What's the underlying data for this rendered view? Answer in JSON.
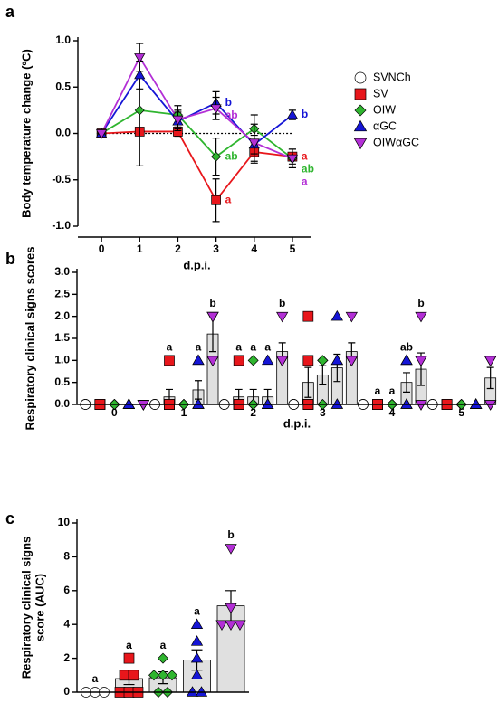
{
  "chart_data": [
    {
      "type": "line",
      "panel_label": "a",
      "y_label": "Body temperature change (ºC)",
      "x_label": "d.p.i.",
      "x": [
        0,
        1,
        2,
        3,
        4,
        5
      ],
      "xlim": [
        -0.5,
        5.5
      ],
      "xticks": [
        0,
        1,
        2,
        3,
        4,
        5
      ],
      "ylim": [
        -1,
        1
      ],
      "yticks": [
        {
          "value": -1,
          "label": "-1.0"
        },
        {
          "value": -0.5,
          "label": "-0.5"
        },
        {
          "value": 0,
          "label": "0.0"
        },
        {
          "value": 0.5,
          "label": "0.5"
        },
        {
          "value": 1,
          "label": "1.0"
        }
      ],
      "series": [
        {
          "name": "SVNCh",
          "color": "#ffffff",
          "marker": "circle",
          "line_style": "dotted",
          "line_color": "#000000",
          "values": [
            0,
            0,
            0,
            0,
            0,
            0
          ]
        },
        {
          "name": "SV",
          "color": "#e8161b",
          "marker": "square",
          "values": [
            0,
            0.02,
            0.02,
            -0.72,
            -0.2,
            -0.25
          ],
          "errors": [
            0,
            0.02,
            0.05,
            0.23,
            0.12,
            0.08
          ],
          "letters": [
            null,
            null,
            null,
            "a",
            null,
            "a"
          ]
        },
        {
          "name": "OIW",
          "color": "#2fb52f",
          "marker": "diamond",
          "values": [
            0,
            0.25,
            0.2,
            -0.25,
            0.05,
            -0.27
          ],
          "errors": [
            0,
            0.6,
            0.1,
            0.2,
            0.15,
            0.1
          ],
          "letters": [
            null,
            null,
            null,
            "ab",
            null,
            "ab"
          ]
        },
        {
          "name": "αGC",
          "color": "#1515d6",
          "marker": "triangle",
          "values": [
            0,
            0.63,
            0.13,
            0.33,
            -0.12,
            0.2
          ],
          "errors": [
            0,
            0.15,
            0.1,
            0.12,
            0.1,
            0.05
          ],
          "letters": [
            null,
            null,
            null,
            "b",
            null,
            "b"
          ]
        },
        {
          "name": "OIWαGC",
          "color": "#b32fd6",
          "marker": "triangle-down",
          "values": [
            0,
            0.82,
            0.15,
            0.27,
            -0.1,
            -0.27
          ],
          "errors": [
            0,
            0.15,
            0.1,
            0.12,
            0.2,
            0.1
          ],
          "letters": [
            null,
            null,
            null,
            "ab",
            null,
            "a"
          ]
        }
      ]
    },
    {
      "type": "grouped_bar",
      "panel_label": "b",
      "y_label": "Respiratory clinical signs scores",
      "x_label": "d.p.i.",
      "categories": [
        "0",
        "1",
        "2",
        "3",
        "4",
        "5"
      ],
      "bar_color": "#e0e0e0",
      "ylim": [
        0,
        3
      ],
      "yticks": [
        {
          "value": 0,
          "label": "0.0"
        },
        {
          "value": 0.5,
          "label": "0.5"
        },
        {
          "value": 1,
          "label": "1.0"
        },
        {
          "value": 1.5,
          "label": "1.5"
        },
        {
          "value": 2,
          "label": "2.0"
        },
        {
          "value": 2.5,
          "label": "2.5"
        },
        {
          "value": 3,
          "label": "3.0"
        }
      ],
      "series": [
        {
          "color": "#ffffff",
          "marker": "circle",
          "values": [
            0,
            0,
            0,
            0,
            0,
            0
          ],
          "errors": [
            0,
            0,
            0,
            0,
            0,
            0
          ],
          "points": [
            [
              0,
              0,
              0
            ],
            [
              0,
              0,
              0
            ],
            [
              0,
              0,
              0
            ],
            [
              0,
              0,
              0
            ],
            [
              0,
              0,
              0
            ],
            [
              0,
              0,
              0
            ]
          ],
          "letters": [
            null,
            null,
            null,
            null,
            null,
            null
          ]
        },
        {
          "color": "#e8161b",
          "marker": "square",
          "values": [
            0,
            0.17,
            0.17,
            0.5,
            0,
            0
          ],
          "errors": [
            0,
            0.17,
            0.17,
            0.34,
            0,
            0
          ],
          "points": [
            [
              0,
              0,
              0,
              0,
              0,
              0
            ],
            [
              1,
              0,
              0,
              0,
              0,
              0
            ],
            [
              1,
              0,
              0,
              0,
              0,
              0
            ],
            [
              2,
              1,
              0,
              0,
              0,
              0
            ],
            [
              0,
              0,
              0,
              0,
              0,
              0
            ],
            [
              0,
              0,
              0,
              0,
              0,
              0
            ]
          ],
          "letters": [
            null,
            "a",
            "a",
            null,
            "a",
            null
          ]
        },
        {
          "color": "#2fb52f",
          "marker": "diamond",
          "values": [
            0,
            0,
            0.17,
            0.67,
            0,
            0
          ],
          "errors": [
            0,
            0,
            0.17,
            0.21,
            0,
            0
          ],
          "points": [
            [
              0,
              0,
              0,
              0,
              0,
              0
            ],
            [
              0,
              0,
              0,
              0,
              0,
              0
            ],
            [
              1,
              0,
              0,
              0,
              0,
              0
            ],
            [
              1,
              1,
              1,
              1,
              0,
              0
            ],
            [
              0,
              0,
              0,
              0,
              0,
              0
            ],
            [
              0,
              0,
              0,
              0,
              0,
              0
            ]
          ],
          "letters": [
            null,
            null,
            "a",
            null,
            "a",
            null
          ]
        },
        {
          "color": "#1515d6",
          "marker": "triangle",
          "values": [
            0,
            0.33,
            0.17,
            0.83,
            0.5,
            0
          ],
          "errors": [
            0,
            0.21,
            0.17,
            0.31,
            0.22,
            0
          ],
          "points": [
            [
              0,
              0,
              0,
              0,
              0,
              0
            ],
            [
              1,
              1,
              0,
              0,
              0,
              0
            ],
            [
              1,
              0,
              0,
              0,
              0,
              0
            ],
            [
              2,
              1,
              1,
              1,
              0,
              0
            ],
            [
              1,
              1,
              1,
              0,
              0,
              0
            ],
            [
              0,
              0,
              0,
              0,
              0,
              0
            ]
          ],
          "letters": [
            null,
            "a",
            "a",
            null,
            "ab",
            null
          ]
        },
        {
          "color": "#b32fd6",
          "marker": "triangle-down",
          "values": [
            0,
            1.6,
            1.2,
            1.2,
            0.8,
            0.6
          ],
          "errors": [
            0,
            0.4,
            0.2,
            0.2,
            0.37,
            0.24
          ],
          "points": [
            [
              0,
              0,
              0,
              0,
              0
            ],
            [
              2,
              2,
              2,
              1,
              1
            ],
            [
              2,
              1,
              1,
              1,
              1
            ],
            [
              2,
              1,
              1,
              1,
              1
            ],
            [
              2,
              1,
              1,
              0,
              0
            ],
            [
              1,
              1,
              1,
              0,
              0
            ]
          ],
          "letters": [
            null,
            "b",
            "b",
            null,
            "b",
            null
          ]
        }
      ]
    },
    {
      "type": "bar",
      "panel_label": "c",
      "y_label": [
        "Respiratory clinical signs",
        "score (AUC)"
      ],
      "bar_color": "#e0e0e0",
      "ylim": [
        0,
        10
      ],
      "yticks": [
        0,
        2,
        4,
        6,
        8,
        10
      ],
      "values": [
        0,
        0.8,
        0.85,
        1.9,
        5.1
      ],
      "errors": [
        0,
        0.35,
        0.35,
        0.6,
        0.9
      ],
      "colors": [
        "#ffffff",
        "#e8161b",
        "#2fb52f",
        "#1515d6",
        "#b32fd6"
      ],
      "markers": [
        "circle",
        "square",
        "diamond",
        "triangle",
        "triangle-down"
      ],
      "points": [
        [
          0,
          0,
          0
        ],
        [
          2,
          1,
          1,
          0,
          0,
          0
        ],
        [
          2,
          1,
          1,
          1,
          0,
          0
        ],
        [
          4,
          3,
          2,
          1,
          0,
          0
        ],
        [
          8.5,
          5,
          4,
          4,
          4
        ]
      ],
      "letters": [
        "a",
        "a",
        "a",
        "a",
        "b"
      ]
    }
  ]
}
